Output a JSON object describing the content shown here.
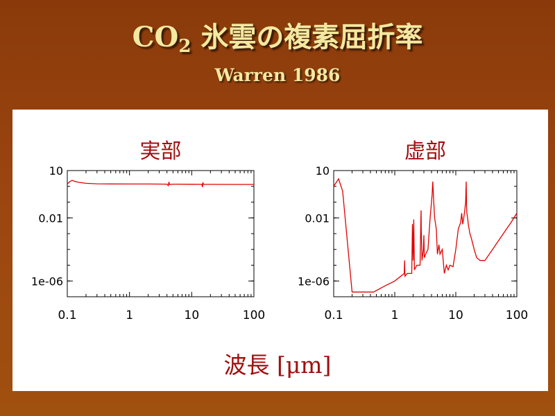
{
  "header": {
    "title_main": "CO",
    "title_sub": "2",
    "title_rest": " 氷雲の複素屈折率",
    "subtitle": "Warren 1986"
  },
  "xaxis_label": "波長 [μm]",
  "colors": {
    "background": "#9b4510",
    "title": "#f4e9a0",
    "panel_title": "#a01010",
    "line": "#e00000"
  },
  "chart_data": [
    {
      "type": "line",
      "title": "実部",
      "xscale": "log",
      "yscale": "log",
      "xlim": [
        0.1,
        100
      ],
      "ylim": [
        1e-07,
        10
      ],
      "xticks": [
        0.1,
        1,
        10,
        100
      ],
      "xticklabels": [
        "0.1",
        "1",
        "10",
        "100"
      ],
      "yticks": [
        10,
        0.01,
        1e-06
      ],
      "yticklabels": [
        "10",
        "0.01",
        "1e-06"
      ],
      "series": [
        {
          "x": [
            0.1,
            0.11,
            0.12,
            0.13,
            0.15,
            0.2,
            0.3,
            0.5,
            1,
            2,
            3,
            4,
            4.2,
            4.3,
            4.4,
            5,
            10,
            14.5,
            14.9,
            15.1,
            15.5,
            20,
            50,
            100
          ],
          "y": [
            1.4,
            2.0,
            2.4,
            2.1,
            1.8,
            1.55,
            1.45,
            1.42,
            1.41,
            1.4,
            1.39,
            1.38,
            1.1,
            1.9,
            1.3,
            1.38,
            1.35,
            1.33,
            0.9,
            1.8,
            1.34,
            1.33,
            1.32,
            1.32
          ]
        }
      ]
    },
    {
      "type": "line",
      "title": "虚部",
      "xscale": "log",
      "yscale": "log",
      "xlim": [
        0.1,
        100
      ],
      "ylim": [
        1e-07,
        10
      ],
      "xticks": [
        0.1,
        1,
        10,
        100
      ],
      "xticklabels": [
        "0.1",
        "1",
        "10",
        "100"
      ],
      "yticks": [
        10,
        0.01,
        1e-06
      ],
      "yticklabels": [
        "10",
        "0.01",
        "1e-06"
      ],
      "series": [
        {
          "x": [
            0.1,
            0.12,
            0.14,
            0.2,
            0.3,
            0.45,
            0.7,
            1.0,
            1.43,
            1.45,
            1.47,
            1.6,
            1.9,
            1.95,
            2.0,
            2.05,
            2.1,
            2.3,
            2.6,
            2.68,
            2.7,
            2.72,
            2.8,
            2.95,
            3.0,
            3.05,
            3.2,
            3.5,
            3.8,
            4.1,
            4.2,
            4.27,
            4.35,
            4.5,
            4.8,
            5.0,
            5.3,
            5.5,
            6.0,
            6.5,
            7.0,
            7.5,
            8.0,
            9.0,
            10.0,
            11.0,
            12.0,
            12.5,
            13.0,
            13.5,
            14.0,
            14.5,
            14.8,
            15.0,
            15.2,
            15.6,
            16.0,
            17.0,
            18.0,
            20.0,
            22.0,
            25.0,
            30.0,
            40.0,
            60.0,
            80.0,
            100.0
          ],
          "y": [
            1.0,
            3.0,
            0.5,
            2e-07,
            2e-07,
            2e-07,
            5e-07,
            1e-06,
            3e-06,
            2e-05,
            2e-06,
            3e-06,
            3e-06,
            0.004,
            2e-05,
            0.008,
            5e-06,
            1e-05,
            1e-05,
            0.01,
            0.03,
            0.002,
            2e-05,
            0.0001,
            0.0008,
            3e-05,
            5e-05,
            0.0001,
            0.01,
            0.3,
            2.0,
            0.5,
            0.1,
            0.01,
            0.002,
            5e-05,
            0.0002,
            5e-05,
            0.0001,
            3e-06,
            1e-05,
            5e-06,
            1e-05,
            8e-06,
            0.0001,
            0.002,
            0.005,
            0.02,
            0.004,
            0.01,
            0.03,
            0.1,
            2.0,
            0.05,
            0.02,
            0.01,
            0.004,
            0.001,
            0.0005,
            0.0001,
            3e-05,
            2e-05,
            2e-05,
            0.0001,
            0.001,
            0.005,
            0.02
          ]
        }
      ]
    }
  ]
}
